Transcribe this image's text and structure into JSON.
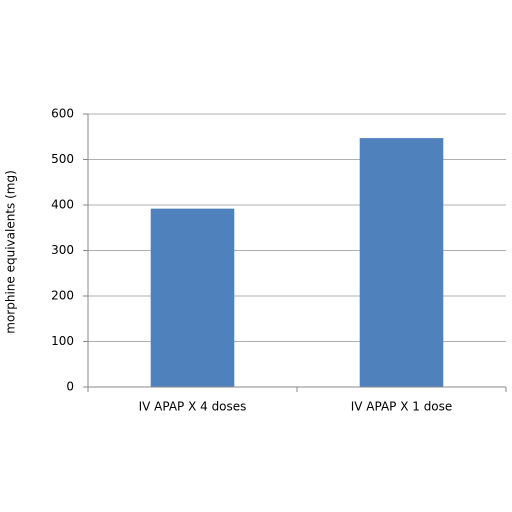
{
  "chart_data": {
    "type": "bar",
    "y_label": "morphine equivalents (mg)",
    "categories": [
      "IV APAP X 4 doses",
      "IV APAP X 1 dose"
    ],
    "values": [
      392,
      547
    ],
    "color": "#4f81bd",
    "ylim": [
      0,
      600
    ],
    "yticks": [
      0,
      100,
      200,
      300,
      400,
      500,
      600
    ],
    "grid": true
  }
}
